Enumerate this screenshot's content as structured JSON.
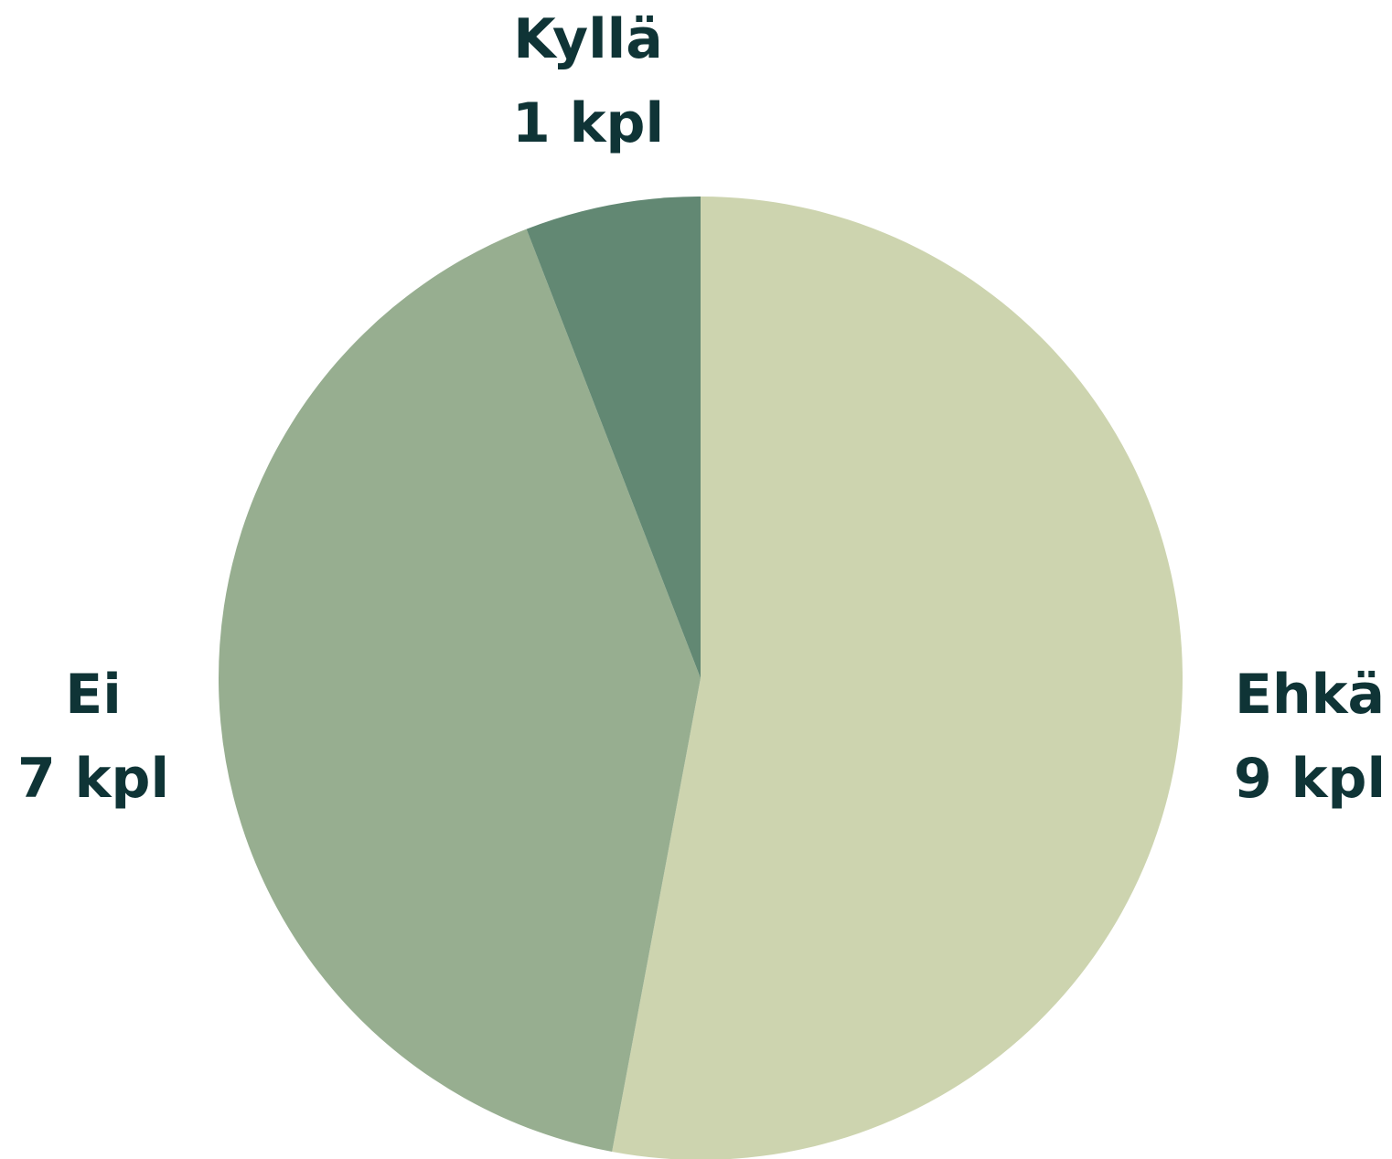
{
  "chart_data": {
    "type": "pie",
    "start_angle_deg": 0,
    "direction": "clockwise",
    "label_color": "#0f3436",
    "slices": [
      {
        "label": "Ehkä",
        "value": 9,
        "value_text": "9 kpl",
        "color": "#cdd4af"
      },
      {
        "label": "Ei",
        "value": 7,
        "value_text": "7 kpl",
        "color": "#97ae90"
      },
      {
        "label": "Kyllä",
        "value": 1,
        "value_text": "1 kpl",
        "color": "#628873"
      }
    ]
  }
}
